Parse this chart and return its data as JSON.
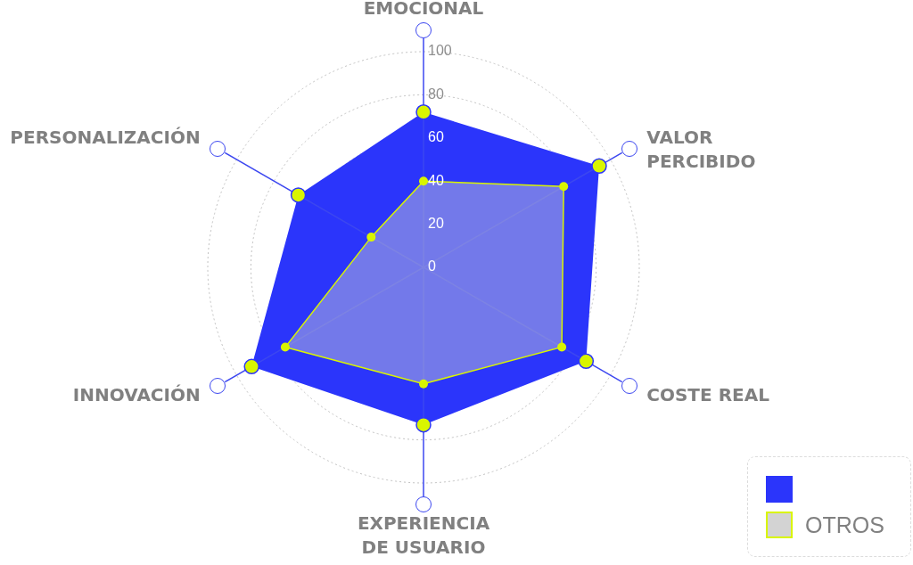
{
  "chart_data": {
    "type": "radar",
    "categories": [
      "EMOCIONAL",
      "VALOR PERCIBIDO",
      "COSTE REAL",
      "EXPERIENCIA DE USUARIO",
      "INNOVACIÓN",
      "PERSONALIZACIÓN"
    ],
    "series": [
      {
        "color": "#2b35fb",
        "values": [
          72,
          94,
          87,
          73,
          92,
          67
        ]
      },
      {
        "name": "OTROS",
        "color": "#d3d3d3",
        "values": [
          40,
          75,
          74,
          54,
          74,
          28
        ]
      }
    ],
    "ylim": [
      0,
      100
    ],
    "yticks": [
      0,
      20,
      40,
      60,
      80,
      100
    ],
    "grid": true,
    "legend": "bottom right",
    "marker": "circle"
  }
}
